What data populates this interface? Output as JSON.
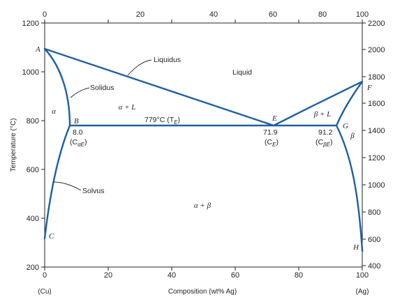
{
  "axes": {
    "left_title": "Temperature (°C)",
    "bottom_title": "Composition (wt% Ag)",
    "left_end_label": "(Cu)",
    "right_end_label": "(Ag)",
    "top_ticks": [
      "0",
      "20",
      "40",
      "60",
      "80",
      "100"
    ],
    "bottom_ticks": [
      "0",
      "20",
      "40",
      "60",
      "80",
      "100"
    ],
    "left_ticks": [
      "200",
      "400",
      "600",
      "800",
      "1000",
      "1200"
    ],
    "right_ticks": [
      "400",
      "600",
      "800",
      "1000",
      "1200",
      "1400",
      "1600",
      "1800",
      "2000",
      "2200"
    ]
  },
  "regions": {
    "liquid": "Liquid",
    "alpha": "α",
    "beta": "β",
    "alpha_liquid": "α + L",
    "beta_liquid": "β + L",
    "alpha_beta": "α + β"
  },
  "annotations": {
    "liquidus": "Liquidus",
    "solidus": "Solidus",
    "solvus": "Solvus",
    "eutectic_line": "779°C (T",
    "eutectic_line_sub": "E",
    "eutectic_line_close": ")"
  },
  "points": {
    "A": "A",
    "B": "B",
    "C": "C",
    "E": "E",
    "F": "F",
    "G": "G",
    "H": "H"
  },
  "compositions": {
    "b_value": "8.0",
    "b_label": "(C",
    "b_label_sub": "αE",
    "b_label_close": ")",
    "e_value": "71.9",
    "e_label": "(C",
    "e_label_sub": "E",
    "e_label_close": ")",
    "g_value": "91.2",
    "g_label": "(C",
    "g_label_sub": "βE",
    "g_label_close": ")"
  },
  "chart_data": {
    "type": "phase-diagram",
    "xlabel": "Composition (wt% Ag)",
    "ylabel": "Temperature (°C)",
    "xlim": [
      0,
      100
    ],
    "ylim": [
      200,
      1200
    ],
    "eutectic_temperature": 779,
    "eutectic_composition": 71.9,
    "alpha_max_solubility": 8.0,
    "beta_max_solubility": 91.2,
    "points": [
      {
        "label": "A",
        "x": 0,
        "y": 1085
      },
      {
        "label": "B",
        "x": 8.0,
        "y": 779
      },
      {
        "label": "C",
        "x": 0,
        "y": 320
      },
      {
        "label": "E",
        "x": 71.9,
        "y": 779
      },
      {
        "label": "F",
        "x": 100,
        "y": 962
      },
      {
        "label": "G",
        "x": 91.2,
        "y": 779
      },
      {
        "label": "H",
        "x": 100,
        "y": 280
      }
    ]
  }
}
